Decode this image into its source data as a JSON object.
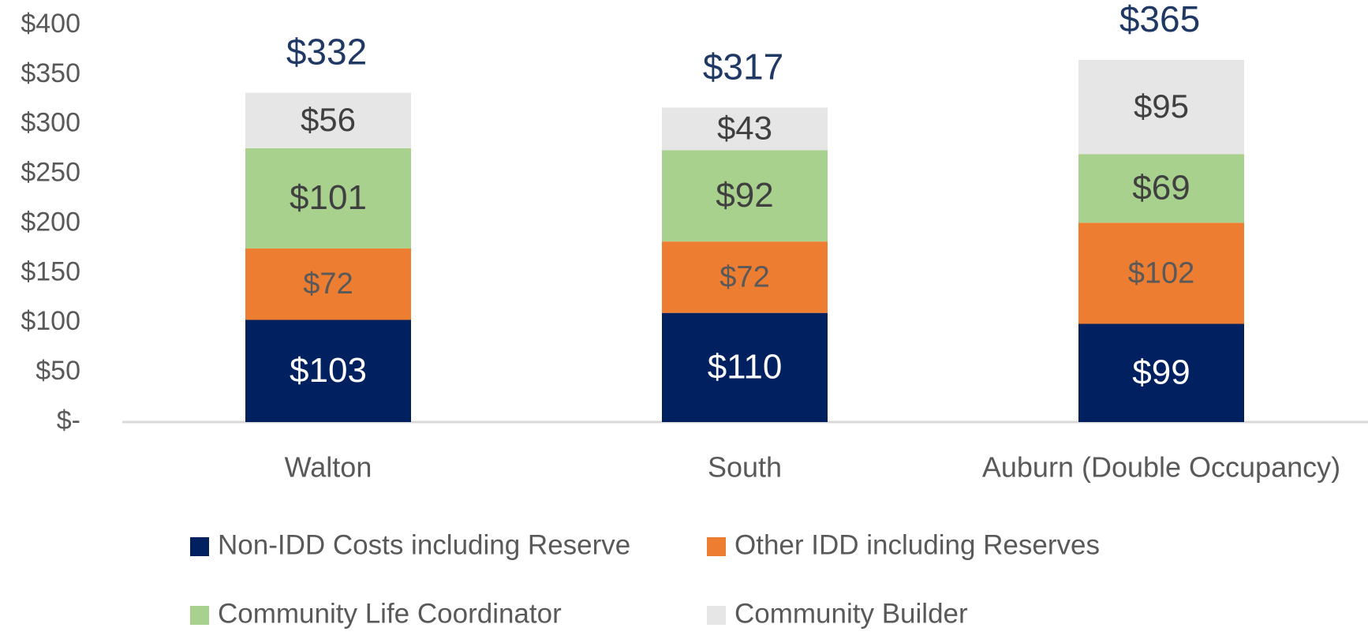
{
  "chart_data": {
    "type": "stacked_bar",
    "categories": [
      "Walton",
      "South",
      "Auburn (Double Occupancy)"
    ],
    "series": [
      {
        "name": "Non-IDD Costs including Reserve",
        "color": "#002060",
        "values": [
          103,
          110,
          99
        ],
        "value_labels": [
          "$103",
          "$110",
          "$99"
        ]
      },
      {
        "name": "Other IDD including Reserves",
        "color": "#ed7d31",
        "values": [
          72,
          72,
          102
        ],
        "value_labels": [
          "$72",
          "$72",
          "$102"
        ]
      },
      {
        "name": "Community Life Coordinator",
        "color": "#a9d18e",
        "values": [
          101,
          92,
          69
        ],
        "value_labels": [
          "$101",
          "$92",
          "$69"
        ]
      },
      {
        "name": "Community Builder",
        "color": "#e7e6e6",
        "values": [
          56,
          43,
          95
        ],
        "value_labels": [
          "$56",
          "$43",
          "$95"
        ]
      }
    ],
    "totals": [
      332,
      317,
      365
    ],
    "total_labels": [
      "$332",
      "$317",
      "$365"
    ],
    "ylim": [
      0,
      400
    ],
    "yticks": [
      {
        "value": 0,
        "label": "$-"
      },
      {
        "value": 50,
        "label": "$50"
      },
      {
        "value": 100,
        "label": "$100"
      },
      {
        "value": 150,
        "label": "$150"
      },
      {
        "value": 200,
        "label": "$200"
      },
      {
        "value": 250,
        "label": "$250"
      },
      {
        "value": 300,
        "label": "$300"
      },
      {
        "value": 350,
        "label": "$350"
      },
      {
        "value": 400,
        "label": "$400"
      }
    ],
    "legend": "bottom"
  }
}
